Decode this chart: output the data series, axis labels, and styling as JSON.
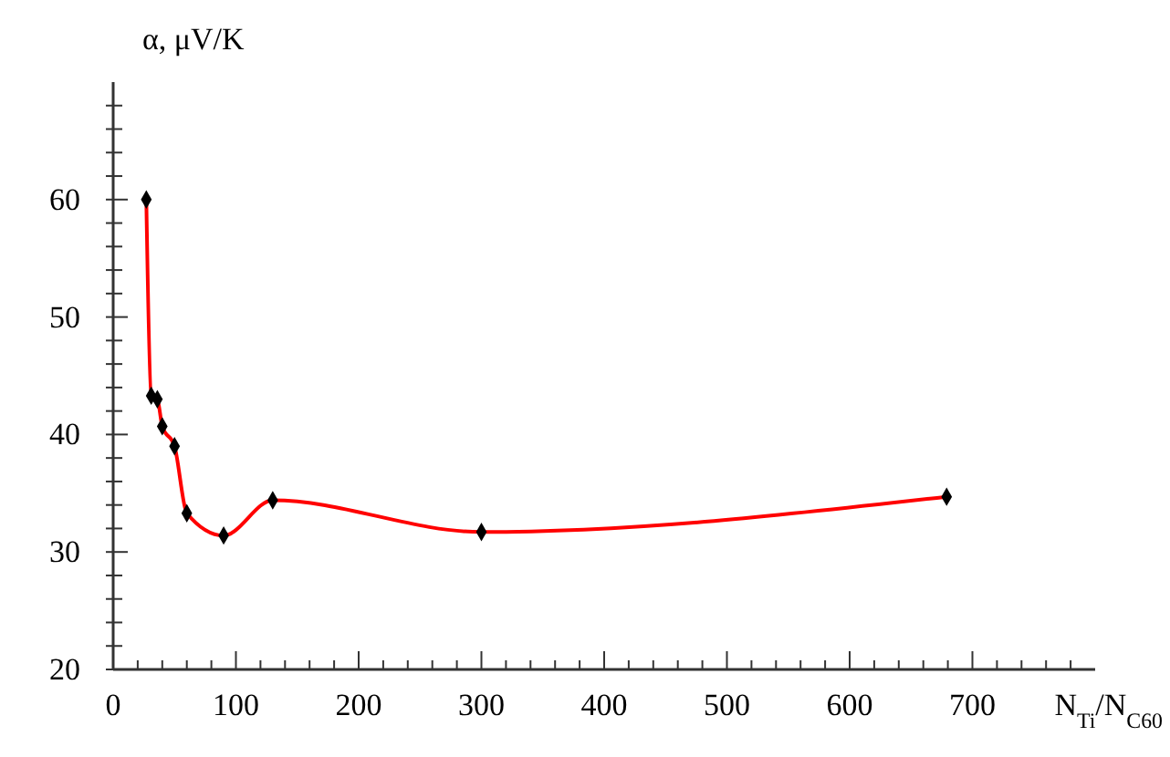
{
  "chart_data": {
    "type": "line",
    "xlabel": "N$_{Ti}$/N$_{C60}$",
    "ylabel": "α, μV/K",
    "marker": "diamond",
    "line_style": "solid",
    "grid": false,
    "xlim": [
      0,
      800
    ],
    "ylim": [
      20,
      70
    ],
    "xticks": [
      0,
      {
        "value": 20,
        "label": null
      },
      {
        "value": 40,
        "label": null
      },
      {
        "value": 60,
        "label": null
      },
      {
        "value": 80,
        "label": null
      },
      100,
      {
        "value": 120,
        "label": null
      },
      {
        "value": 140,
        "label": null
      },
      {
        "value": 160,
        "label": null
      },
      {
        "value": 180,
        "label": null
      },
      200,
      {
        "value": 220,
        "label": null
      },
      {
        "value": 240,
        "label": null
      },
      {
        "value": 260,
        "label": null
      },
      {
        "value": 280,
        "label": null
      },
      300,
      {
        "value": 320,
        "label": null
      },
      {
        "value": 340,
        "label": null
      },
      {
        "value": 360,
        "label": null
      },
      {
        "value": 380,
        "label": null
      },
      400,
      {
        "value": 420,
        "label": null
      },
      {
        "value": 440,
        "label": null
      },
      {
        "value": 460,
        "label": null
      },
      {
        "value": 480,
        "label": null
      },
      500,
      {
        "value": 520,
        "label": null
      },
      {
        "value": 540,
        "label": null
      },
      {
        "value": 560,
        "label": null
      },
      {
        "value": 580,
        "label": null
      },
      600,
      {
        "value": 620,
        "label": null
      },
      {
        "value": 640,
        "label": null
      },
      {
        "value": 660,
        "label": null
      },
      {
        "value": 680,
        "label": null
      },
      700,
      {
        "value": 720,
        "label": null
      },
      {
        "value": 740,
        "label": null
      },
      {
        "value": 760,
        "label": null
      },
      {
        "value": 780,
        "label": null
      }
    ],
    "yticks": [
      20,
      {
        "value": 22,
        "label": null
      },
      {
        "value": 24,
        "label": null
      },
      {
        "value": 26,
        "label": null
      },
      {
        "value": 28,
        "label": null
      },
      30,
      {
        "value": 32,
        "label": null
      },
      {
        "value": 34,
        "label": null
      },
      {
        "value": 36,
        "label": null
      },
      {
        "value": 38,
        "label": null
      },
      40,
      {
        "value": 42,
        "label": null
      },
      {
        "value": 44,
        "label": null
      },
      {
        "value": 46,
        "label": null
      },
      {
        "value": 48,
        "label": null
      },
      50,
      {
        "value": 52,
        "label": null
      },
      {
        "value": 54,
        "label": null
      },
      {
        "value": 56,
        "label": null
      },
      {
        "value": 58,
        "label": null
      },
      60,
      {
        "value": 62,
        "label": null
      },
      {
        "value": 64,
        "label": null
      },
      {
        "value": 66,
        "label": null
      },
      {
        "value": 68,
        "label": null
      }
    ],
    "series": [
      {
        "color": "#ff0000",
        "x": [
          27,
          31,
          36,
          40,
          50,
          60,
          90,
          130,
          300,
          679
        ],
        "values": [
          60,
          43.3,
          43.0,
          40.7,
          39.0,
          33.3,
          31.4,
          34.4,
          31.7,
          34.7
        ]
      }
    ]
  }
}
